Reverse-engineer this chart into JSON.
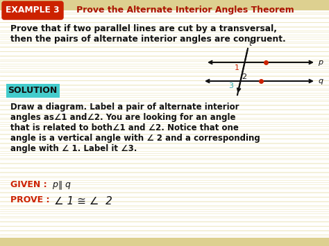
{
  "bg_color": "#fffef0",
  "stripe_color": "#e8dfa0",
  "title_box_color": "#cc2200",
  "title_box_text": "EXAMPLE 3",
  "title_box_text_color": "#ffffff",
  "title_text": "   Prove the Alternate Interior Angles Theorem",
  "title_text_color": "#aa1100",
  "body_text_color": "#111111",
  "solution_box_color": "#44cccc",
  "solution_text": "SOLUTION",
  "solution_text_color": "#111111",
  "given_prove_color": "#cc2200",
  "line_color": "#111111",
  "dot_color": "#cc2200",
  "num1_color": "#cc2200",
  "num2_color": "#111111",
  "num3_color": "#33aaaa",
  "transversal_color": "#111111"
}
